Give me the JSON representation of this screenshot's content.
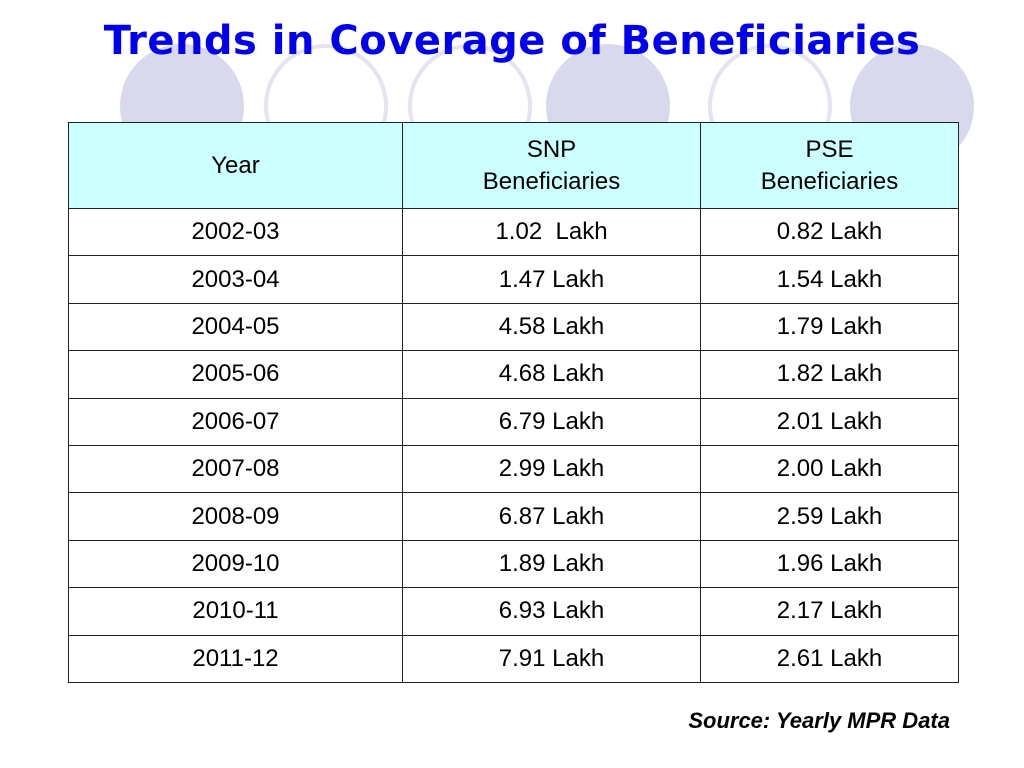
{
  "title": "Trends in Coverage of Beneficiaries",
  "table": {
    "headers": [
      "Year",
      "SNP\nBeneficiaries",
      "PSE\nBeneficiaries"
    ],
    "rows": [
      [
        "2002-03",
        "1.02  Lakh",
        "0.82 Lakh"
      ],
      [
        "2003-04",
        "1.47 Lakh",
        "1.54 Lakh"
      ],
      [
        "2004-05",
        "4.58 Lakh",
        "1.79 Lakh"
      ],
      [
        "2005-06",
        "4.68 Lakh",
        "1.82 Lakh"
      ],
      [
        "2006-07",
        "6.79 Lakh",
        "2.01 Lakh"
      ],
      [
        "2007-08",
        "2.99 Lakh",
        "2.00 Lakh"
      ],
      [
        "2008-09",
        "6.87 Lakh",
        "2.59 Lakh"
      ],
      [
        "2009-10",
        "1.89 Lakh",
        "1.96 Lakh"
      ],
      [
        "2010-11",
        "6.93 Lakh",
        "2.17 Lakh"
      ],
      [
        "2011-12",
        "7.91 Lakh",
        "2.61 Lakh"
      ]
    ]
  },
  "source": "Source: Yearly MPR Data",
  "colors": {
    "title": "#0000ee",
    "header_background": "#ccffff",
    "decor_filled": "#d9d9ee",
    "decor_ring": "#e3e3f1"
  }
}
